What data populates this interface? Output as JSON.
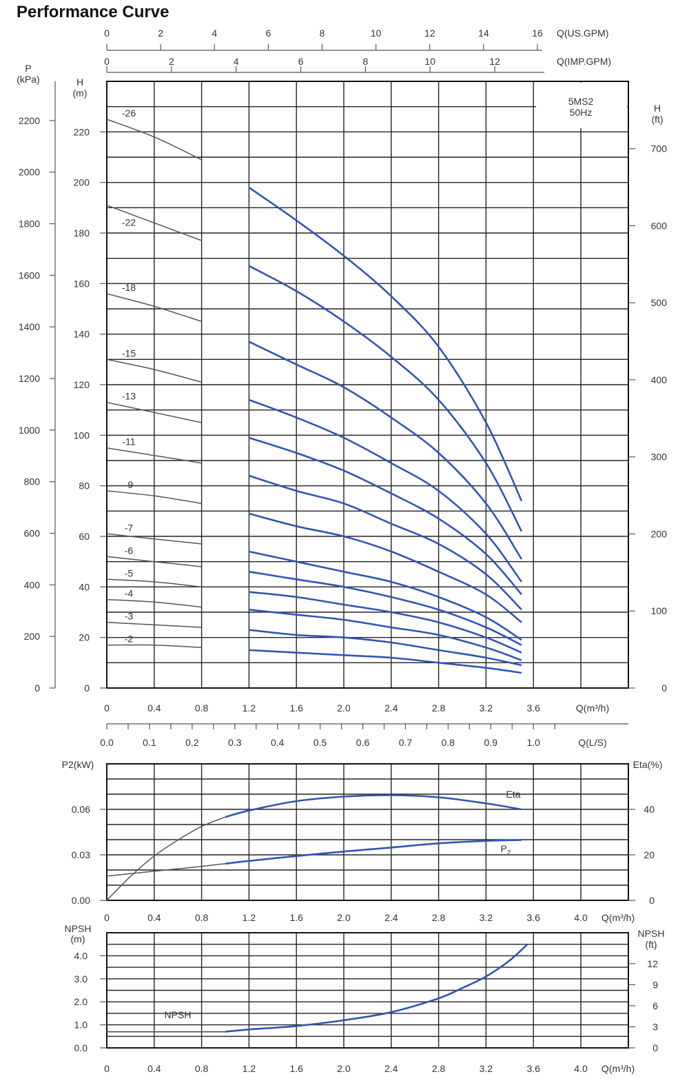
{
  "title": "Performance Curve",
  "colors": {
    "curve_blue": "#2f55b4",
    "curve_gray": "#555555",
    "grid": "#222222"
  },
  "chart_data": [
    {
      "type": "line",
      "name": "head",
      "model_label": "5MS2",
      "freq_label": "50Hz",
      "xlabel": "Q(m³/h)",
      "ylabel": "H (m)",
      "xlim": [
        0,
        4.4
      ],
      "ylim": [
        0,
        240
      ],
      "x_ticks": [
        "0",
        "0.4",
        "0.8",
        "1.2",
        "1.6",
        "2.0",
        "2.4",
        "2.8",
        "3.2",
        "3.6"
      ],
      "y_ticks": [
        "0",
        "20",
        "40",
        "60",
        "80",
        "100",
        "120",
        "140",
        "160",
        "180",
        "200",
        "220"
      ],
      "left_axis": {
        "title_top": "P",
        "title_bottom": "(kPa)",
        "ticks": [
          "0",
          "200",
          "400",
          "600",
          "800",
          "1000",
          "1200",
          "1400",
          "1600",
          "1800",
          "2000",
          "2200"
        ]
      },
      "h_m_axis": {
        "title_top": "H",
        "title_bottom": "(m)"
      },
      "right_axis": {
        "title_top": "H",
        "title_bottom": "(ft)",
        "ticks": [
          "0",
          "100",
          "200",
          "300",
          "400",
          "500",
          "600",
          "700"
        ]
      },
      "top_axis_us": {
        "label": "Q(US.GPM)",
        "ticks": [
          "0",
          "2",
          "4",
          "6",
          "8",
          "10",
          "12",
          "14",
          "16"
        ]
      },
      "top_axis_imp": {
        "label": "Q(IMP.GPM)",
        "ticks": [
          "0",
          "2",
          "4",
          "6",
          "8",
          "10",
          "12"
        ]
      },
      "bottom_axis_ls": {
        "label": "Q(L/S)",
        "ticks": [
          "0.0",
          "0.1",
          "0.2",
          "0.3",
          "0.4",
          "0.5",
          "0.6",
          "0.7",
          "0.8",
          "0.9",
          "1.0"
        ]
      },
      "x": [
        0,
        0.4,
        0.8,
        1.2,
        1.6,
        2.0,
        2.4,
        2.8,
        3.2,
        3.5
      ],
      "series": [
        {
          "name": "-26",
          "values": [
            225,
            218,
            209,
            198,
            185,
            171,
            155,
            135,
            105,
            74
          ]
        },
        {
          "name": "-22",
          "values": [
            191,
            184,
            177,
            167,
            157,
            145,
            131,
            114,
            89,
            62
          ]
        },
        {
          "name": "-18",
          "values": [
            156,
            151,
            145,
            137,
            128,
            119,
            107,
            93,
            73,
            51
          ]
        },
        {
          "name": "-15",
          "values": [
            130,
            126,
            121,
            114,
            107,
            99,
            89,
            78,
            61,
            42
          ]
        },
        {
          "name": "-13",
          "values": [
            113,
            109,
            105,
            99,
            93,
            86,
            77,
            67,
            53,
            37
          ]
        },
        {
          "name": "-11",
          "values": [
            95,
            92,
            89,
            84,
            78,
            73,
            65,
            57,
            45,
            31
          ]
        },
        {
          "name": "-9",
          "values": [
            78,
            76,
            73,
            69,
            64,
            60,
            54,
            46,
            37,
            26
          ]
        },
        {
          "name": "-7",
          "values": [
            61,
            59,
            57,
            54,
            50,
            46,
            42,
            36,
            28,
            19
          ]
        },
        {
          "name": "-6",
          "values": [
            52,
            50,
            48,
            46,
            43,
            40,
            36,
            31,
            24,
            17
          ]
        },
        {
          "name": "-5",
          "values": [
            43,
            42,
            40,
            38,
            36,
            33,
            30,
            26,
            20,
            14
          ]
        },
        {
          "name": "-4",
          "values": [
            35,
            34,
            32,
            31,
            29,
            27,
            24,
            21,
            16,
            11
          ]
        },
        {
          "name": "-3",
          "values": [
            26,
            25,
            24,
            23,
            21,
            20,
            18,
            15,
            12,
            9
          ]
        },
        {
          "name": "-2",
          "values": [
            17,
            17,
            16,
            15,
            14,
            13,
            12,
            10,
            8,
            6
          ]
        }
      ]
    },
    {
      "type": "line",
      "name": "power-efficiency",
      "xlabel": "Q(m³/h)",
      "ylabel": "P2(kW)",
      "y2label": "Eta(%)",
      "xlim": [
        0,
        4.4
      ],
      "ylim": [
        0,
        0.09
      ],
      "y2lim": [
        0,
        60
      ],
      "x_ticks": [
        "0",
        "0.4",
        "0.8",
        "1.2",
        "1.6",
        "2.0",
        "2.4",
        "2.8",
        "3.2",
        "3.6",
        "4.0"
      ],
      "y_ticks": [
        "0.00",
        "0.03",
        "0.06"
      ],
      "y2_ticks": [
        "0",
        "20",
        "40"
      ],
      "x": [
        0,
        0.2,
        0.4,
        0.6,
        0.8,
        1.0,
        1.2,
        1.6,
        2.0,
        2.4,
        2.8,
        3.2,
        3.5
      ],
      "series": [
        {
          "name": "Eta",
          "axis": "right",
          "values": [
            0,
            10.5,
            19.5,
            26.5,
            32.5,
            36.6,
            39.5,
            43.6,
            45.6,
            46.2,
            45.3,
            42.6,
            40.0
          ]
        },
        {
          "name": "P2",
          "axis": "left",
          "values": [
            0.016,
            0.0176,
            0.0192,
            0.0208,
            0.0224,
            0.0242,
            0.026,
            0.0292,
            0.0322,
            0.0348,
            0.0376,
            0.0392,
            0.0398
          ]
        }
      ]
    },
    {
      "type": "line",
      "name": "npsh",
      "xlabel": "Q(m³/h)",
      "ylabel": "NPSH (m)",
      "y2label": "NPSH (ft)",
      "xlim": [
        0,
        4.4
      ],
      "ylim": [
        0,
        5.0
      ],
      "x_ticks": [
        "0",
        "0.4",
        "0.8",
        "1.2",
        "1.6",
        "2.0",
        "2.4",
        "2.8",
        "3.2",
        "3.6",
        "4.0"
      ],
      "y_ticks": [
        "0.0",
        "1.0",
        "2.0",
        "3.0",
        "4.0"
      ],
      "y2_ticks": [
        "0",
        "3",
        "6",
        "9",
        "12"
      ],
      "x": [
        0,
        0.4,
        0.8,
        1.0,
        1.2,
        1.6,
        2.0,
        2.4,
        2.8,
        3.0,
        3.2,
        3.4,
        3.55
      ],
      "series": [
        {
          "name": "NPSH",
          "values": [
            0.7,
            0.7,
            0.7,
            0.7,
            0.8,
            0.95,
            1.2,
            1.55,
            2.15,
            2.6,
            3.1,
            3.8,
            4.5
          ]
        }
      ]
    }
  ]
}
